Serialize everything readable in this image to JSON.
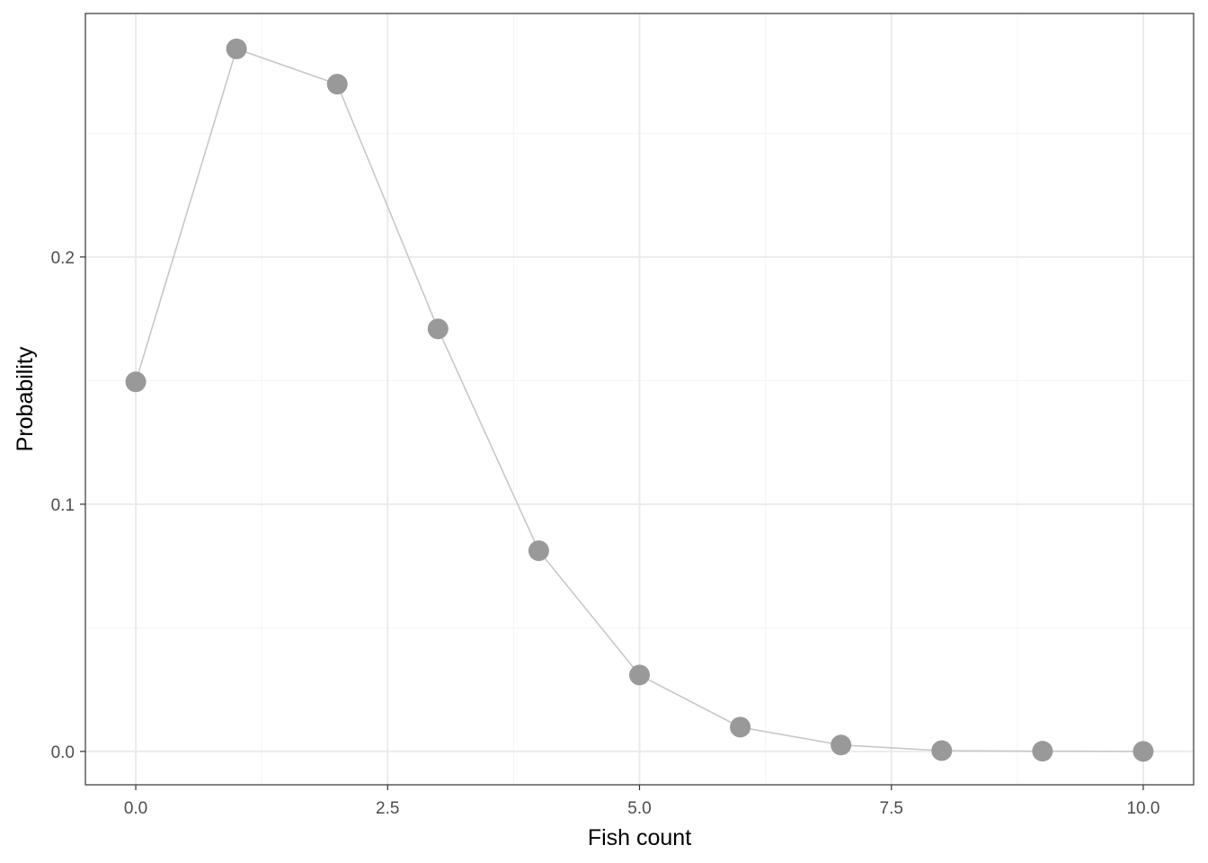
{
  "chart_data": {
    "type": "line",
    "title": "",
    "xlabel": "Fish count",
    "ylabel": "Probability",
    "xlim": [
      -0.5,
      10.5
    ],
    "ylim": [
      -0.0135,
      0.2985
    ],
    "grid": true,
    "x_major_ticks": [
      0,
      2.5,
      5,
      7.5,
      10
    ],
    "x_tick_labels": [
      "0.0",
      "2.5",
      "5.0",
      "7.5",
      "10.0"
    ],
    "x_minor_ticks": [
      1.25,
      3.75,
      6.25,
      8.75
    ],
    "y_major_ticks": [
      0,
      0.1,
      0.2
    ],
    "y_tick_labels": [
      "0.0",
      "0.1",
      "0.2"
    ],
    "y_minor_ticks": [
      0.05,
      0.15,
      0.25
    ],
    "series": [
      {
        "x": [
          0,
          1,
          2,
          3,
          4,
          5,
          6,
          7,
          8,
          9,
          10
        ],
        "values": [
          0.1495,
          0.2842,
          0.2699,
          0.1709,
          0.0812,
          0.0309,
          0.0098,
          0.0026,
          0.0003,
          0.0001,
          0.0
        ],
        "line_color": "#c8c8c8",
        "point_color": "#999999"
      }
    ],
    "colors": {
      "grid_major": "#ebebeb",
      "grid_minor": "#f5f5f5",
      "panel_border": "#333333"
    }
  }
}
